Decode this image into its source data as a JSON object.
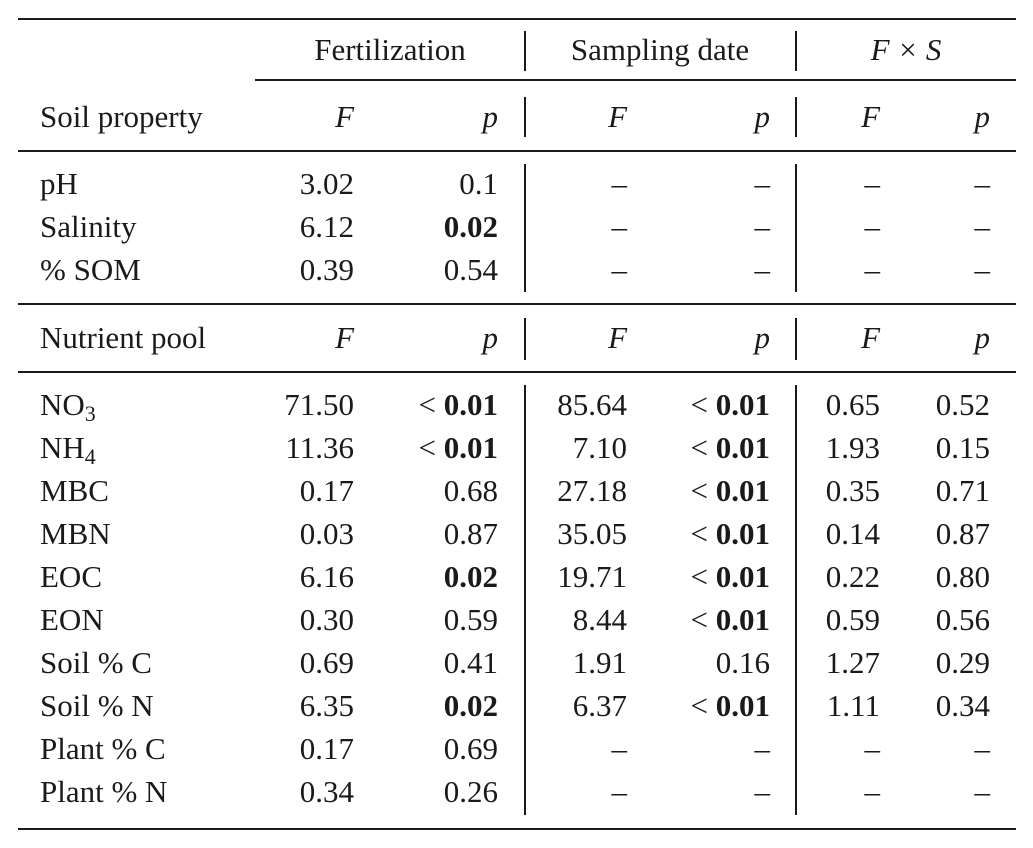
{
  "header": {
    "groups": [
      "Fertilization",
      "Sampling date",
      "F × S"
    ],
    "row_label_1": "Soil property",
    "row_label_2": "Nutrient pool",
    "col_F": "F",
    "col_p": "p"
  },
  "soil_rows": [
    {
      "label": "pH",
      "fert_F": "3.02",
      "fert_p": "0.1",
      "samp_F": "–",
      "samp_p": "–",
      "fs_F": "–",
      "fs_p": "–"
    },
    {
      "label": "Salinity",
      "fert_F": "6.12",
      "fert_p": "0.02",
      "samp_F": "–",
      "samp_p": "–",
      "fs_F": "–",
      "fs_p": "–"
    },
    {
      "label": "% SOM",
      "fert_F": "0.39",
      "fert_p": "0.54",
      "samp_F": "–",
      "samp_p": "–",
      "fs_F": "–",
      "fs_p": "–"
    }
  ],
  "nutrient_rows": [
    {
      "label": "NO",
      "label_sub": "3",
      "fert_F": "71.50",
      "fert_p_prefix": "<",
      "fert_p": "0.01",
      "samp_F": "85.64",
      "samp_p_prefix": "<",
      "samp_p": "0.01",
      "fs_F": "0.65",
      "fs_p": "0.52"
    },
    {
      "label": "NH",
      "label_sub": "4",
      "fert_F": "11.36",
      "fert_p_prefix": "<",
      "fert_p": "0.01",
      "samp_F": "7.10",
      "samp_p_prefix": "<",
      "samp_p": "0.01",
      "fs_F": "1.93",
      "fs_p": "0.15"
    },
    {
      "label": "MBC",
      "fert_F": "0.17",
      "fert_p": "0.68",
      "samp_F": "27.18",
      "samp_p_prefix": "<",
      "samp_p": "0.01",
      "fs_F": "0.35",
      "fs_p": "0.71"
    },
    {
      "label": "MBN",
      "fert_F": "0.03",
      "fert_p": "0.87",
      "samp_F": "35.05",
      "samp_p_prefix": "<",
      "samp_p": "0.01",
      "fs_F": "0.14",
      "fs_p": "0.87"
    },
    {
      "label": "EOC",
      "fert_F": "6.16",
      "fert_p": "0.02",
      "samp_F": "19.71",
      "samp_p_prefix": "<",
      "samp_p": "0.01",
      "fs_F": "0.22",
      "fs_p": "0.80"
    },
    {
      "label": "EON",
      "fert_F": "0.30",
      "fert_p": "0.59",
      "samp_F": "8.44",
      "samp_p_prefix": "<",
      "samp_p": "0.01",
      "fs_F": "0.59",
      "fs_p": "0.56"
    },
    {
      "label": "Soil % C",
      "fert_F": "0.69",
      "fert_p": "0.41",
      "samp_F": "1.91",
      "samp_p": "0.16",
      "fs_F": "1.27",
      "fs_p": "0.29"
    },
    {
      "label": "Soil % N",
      "fert_F": "6.35",
      "fert_p": "0.02",
      "samp_F": "6.37",
      "samp_p_prefix": "<",
      "samp_p": "0.01",
      "fs_F": "1.11",
      "fs_p": "0.34"
    },
    {
      "label": "Plant % C",
      "fert_F": "0.17",
      "fert_p": "0.69",
      "samp_F": "–",
      "samp_p": "–",
      "fs_F": "–",
      "fs_p": "–"
    },
    {
      "label": "Plant % N",
      "fert_F": "0.34",
      "fert_p": "0.26",
      "samp_F": "–",
      "samp_p": "–",
      "fs_F": "–",
      "fs_p": "–"
    }
  ]
}
